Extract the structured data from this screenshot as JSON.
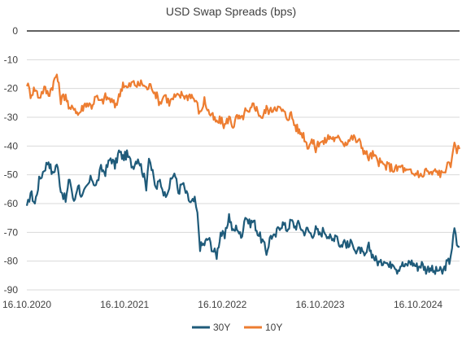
{
  "chart_data": {
    "type": "line",
    "title": "USD Swap Spreads (bps)",
    "xlabel": "",
    "ylabel": "",
    "ylim": [
      -90,
      0
    ],
    "yticks": [
      0,
      -10,
      -20,
      -30,
      -40,
      -50,
      -60,
      -70,
      -80,
      -90
    ],
    "xlim": [
      "2020-10-16",
      "2025-03-20"
    ],
    "xtick_labels": [
      "16.10.2020",
      "16.10.2021",
      "16.10.2022",
      "16.10.2023",
      "16.10.2024"
    ],
    "xtick_dates": [
      "2020-10-16",
      "2021-10-16",
      "2022-10-16",
      "2023-10-16",
      "2024-10-16"
    ],
    "grid": true,
    "legend_position": "bottom",
    "series": [
      {
        "name": "30Y",
        "color": "#1f5b7a",
        "points": [
          [
            "2020-10-16",
            -62
          ],
          [
            "2020-10-30",
            -56
          ],
          [
            "2020-11-15",
            -60
          ],
          [
            "2020-12-01",
            -52
          ],
          [
            "2020-12-20",
            -48
          ],
          [
            "2021-01-05",
            -45
          ],
          [
            "2021-01-20",
            -50
          ],
          [
            "2021-02-05",
            -46
          ],
          [
            "2021-02-20",
            -55
          ],
          [
            "2021-03-10",
            -59
          ],
          [
            "2021-03-25",
            -51
          ],
          [
            "2021-04-10",
            -60
          ],
          [
            "2021-04-25",
            -53
          ],
          [
            "2021-05-10",
            -58
          ],
          [
            "2021-05-25",
            -55
          ],
          [
            "2021-06-15",
            -51
          ],
          [
            "2021-07-01",
            -54
          ],
          [
            "2021-07-20",
            -48
          ],
          [
            "2021-08-05",
            -49
          ],
          [
            "2021-08-25",
            -44
          ],
          [
            "2021-09-10",
            -47
          ],
          [
            "2021-09-25",
            -42
          ],
          [
            "2021-10-10",
            -44
          ],
          [
            "2021-10-25",
            -43
          ],
          [
            "2021-11-15",
            -47
          ],
          [
            "2021-12-05",
            -44
          ],
          [
            "2021-12-20",
            -48
          ],
          [
            "2022-01-05",
            -54
          ],
          [
            "2022-01-15",
            -43
          ],
          [
            "2022-01-25",
            -48
          ],
          [
            "2022-02-10",
            -55
          ],
          [
            "2022-02-25",
            -52
          ],
          [
            "2022-03-15",
            -57
          ],
          [
            "2022-04-01",
            -54
          ],
          [
            "2022-04-20",
            -49
          ],
          [
            "2022-05-05",
            -56
          ],
          [
            "2022-05-20",
            -53
          ],
          [
            "2022-06-05",
            -57
          ],
          [
            "2022-06-20",
            -60
          ],
          [
            "2022-07-05",
            -59
          ],
          [
            "2022-07-15",
            -64
          ],
          [
            "2022-07-25",
            -75
          ],
          [
            "2022-08-10",
            -74
          ],
          [
            "2022-08-25",
            -72
          ],
          [
            "2022-09-10",
            -76
          ],
          [
            "2022-09-25",
            -78
          ],
          [
            "2022-10-10",
            -70
          ],
          [
            "2022-10-25",
            -72
          ],
          [
            "2022-11-10",
            -64
          ],
          [
            "2022-11-25",
            -70
          ],
          [
            "2022-12-10",
            -68
          ],
          [
            "2022-12-25",
            -72
          ],
          [
            "2023-01-10",
            -64
          ],
          [
            "2023-01-25",
            -67
          ],
          [
            "2023-02-10",
            -66
          ],
          [
            "2023-02-25",
            -70
          ],
          [
            "2023-03-15",
            -73
          ],
          [
            "2023-03-30",
            -77
          ],
          [
            "2023-04-15",
            -71
          ],
          [
            "2023-04-30",
            -72
          ],
          [
            "2023-05-15",
            -68
          ],
          [
            "2023-05-30",
            -67
          ],
          [
            "2023-06-15",
            -69
          ],
          [
            "2023-06-30",
            -66
          ],
          [
            "2023-07-15",
            -68
          ],
          [
            "2023-07-30",
            -67
          ],
          [
            "2023-08-15",
            -70
          ],
          [
            "2023-08-30",
            -69
          ],
          [
            "2023-09-15",
            -71
          ],
          [
            "2023-09-30",
            -69
          ],
          [
            "2023-10-15",
            -71
          ],
          [
            "2023-10-30",
            -69
          ],
          [
            "2023-11-15",
            -71
          ],
          [
            "2023-11-30",
            -73
          ],
          [
            "2023-12-15",
            -70
          ],
          [
            "2023-12-30",
            -75
          ],
          [
            "2024-01-15",
            -73
          ],
          [
            "2024-01-30",
            -75
          ],
          [
            "2024-02-15",
            -73
          ],
          [
            "2024-02-28",
            -77
          ],
          [
            "2024-03-15",
            -76
          ],
          [
            "2024-03-30",
            -79
          ],
          [
            "2024-04-15",
            -75
          ],
          [
            "2024-04-30",
            -78
          ],
          [
            "2024-05-15",
            -80
          ],
          [
            "2024-05-30",
            -81
          ],
          [
            "2024-06-15",
            -79
          ],
          [
            "2024-06-30",
            -82
          ],
          [
            "2024-07-15",
            -80
          ],
          [
            "2024-07-30",
            -83
          ],
          [
            "2024-08-15",
            -81
          ],
          [
            "2024-08-30",
            -82
          ],
          [
            "2024-09-15",
            -80
          ],
          [
            "2024-09-30",
            -81
          ],
          [
            "2024-10-15",
            -82
          ],
          [
            "2024-10-30",
            -81
          ],
          [
            "2024-11-15",
            -83
          ],
          [
            "2024-11-30",
            -82
          ],
          [
            "2024-12-15",
            -84
          ],
          [
            "2024-12-30",
            -83
          ],
          [
            "2025-01-15",
            -84
          ],
          [
            "2025-01-30",
            -81
          ],
          [
            "2025-02-10",
            -80
          ],
          [
            "2025-02-20",
            -75
          ],
          [
            "2025-03-01",
            -69
          ],
          [
            "2025-03-10",
            -74
          ],
          [
            "2025-03-20",
            -75
          ]
        ]
      },
      {
        "name": "10Y",
        "color": "#ed7d31",
        "points": [
          [
            "2020-10-16",
            -18
          ],
          [
            "2020-10-30",
            -22
          ],
          [
            "2020-11-15",
            -20
          ],
          [
            "2020-12-01",
            -23
          ],
          [
            "2020-12-20",
            -20
          ],
          [
            "2021-01-05",
            -22
          ],
          [
            "2021-01-20",
            -19
          ],
          [
            "2021-02-05",
            -15
          ],
          [
            "2021-02-20",
            -24
          ],
          [
            "2021-03-10",
            -22
          ],
          [
            "2021-03-25",
            -28
          ],
          [
            "2021-04-10",
            -26
          ],
          [
            "2021-04-25",
            -29
          ],
          [
            "2021-05-10",
            -27
          ],
          [
            "2021-05-25",
            -25
          ],
          [
            "2021-06-15",
            -26
          ],
          [
            "2021-07-01",
            -23
          ],
          [
            "2021-07-20",
            -25
          ],
          [
            "2021-08-05",
            -23
          ],
          [
            "2021-08-25",
            -24
          ],
          [
            "2021-09-10",
            -26
          ],
          [
            "2021-09-25",
            -23
          ],
          [
            "2021-10-10",
            -18
          ],
          [
            "2021-10-25",
            -20
          ],
          [
            "2021-11-15",
            -18
          ],
          [
            "2021-12-05",
            -19
          ],
          [
            "2021-12-20",
            -18
          ],
          [
            "2022-01-05",
            -20
          ],
          [
            "2022-01-25",
            -19
          ],
          [
            "2022-02-10",
            -22
          ],
          [
            "2022-02-25",
            -25
          ],
          [
            "2022-03-15",
            -22
          ],
          [
            "2022-04-01",
            -25
          ],
          [
            "2022-04-20",
            -23
          ],
          [
            "2022-05-05",
            -23
          ],
          [
            "2022-05-20",
            -22
          ],
          [
            "2022-06-05",
            -23
          ],
          [
            "2022-06-20",
            -22
          ],
          [
            "2022-07-05",
            -24
          ],
          [
            "2022-07-15",
            -26
          ],
          [
            "2022-07-25",
            -29
          ],
          [
            "2022-08-10",
            -24
          ],
          [
            "2022-08-25",
            -28
          ],
          [
            "2022-09-10",
            -30
          ],
          [
            "2022-09-25",
            -32
          ],
          [
            "2022-10-10",
            -31
          ],
          [
            "2022-10-25",
            -33
          ],
          [
            "2022-11-10",
            -30
          ],
          [
            "2022-11-25",
            -33
          ],
          [
            "2022-12-10",
            -30
          ],
          [
            "2022-12-25",
            -31
          ],
          [
            "2023-01-10",
            -28
          ],
          [
            "2023-01-25",
            -29
          ],
          [
            "2023-02-10",
            -25
          ],
          [
            "2023-02-25",
            -28
          ],
          [
            "2023-03-15",
            -30
          ],
          [
            "2023-03-30",
            -27
          ],
          [
            "2023-04-15",
            -28
          ],
          [
            "2023-04-30",
            -26
          ],
          [
            "2023-05-15",
            -27
          ],
          [
            "2023-05-30",
            -28
          ],
          [
            "2023-06-15",
            -30
          ],
          [
            "2023-06-30",
            -29
          ],
          [
            "2023-07-15",
            -33
          ],
          [
            "2023-07-30",
            -35
          ],
          [
            "2023-08-15",
            -36
          ],
          [
            "2023-08-30",
            -40
          ],
          [
            "2023-09-15",
            -38
          ],
          [
            "2023-09-30",
            -41
          ],
          [
            "2023-10-15",
            -38
          ],
          [
            "2023-10-30",
            -39
          ],
          [
            "2023-11-15",
            -37
          ],
          [
            "2023-11-30",
            -37
          ],
          [
            "2023-12-15",
            -38
          ],
          [
            "2023-12-30",
            -37
          ],
          [
            "2024-01-15",
            -39
          ],
          [
            "2024-01-30",
            -38
          ],
          [
            "2024-02-15",
            -37
          ],
          [
            "2024-02-28",
            -38
          ],
          [
            "2024-03-15",
            -39
          ],
          [
            "2024-03-30",
            -42
          ],
          [
            "2024-04-15",
            -44
          ],
          [
            "2024-04-30",
            -43
          ],
          [
            "2024-05-15",
            -45
          ],
          [
            "2024-05-30",
            -46
          ],
          [
            "2024-06-15",
            -47
          ],
          [
            "2024-06-30",
            -47
          ],
          [
            "2024-07-15",
            -48
          ],
          [
            "2024-07-30",
            -48
          ],
          [
            "2024-08-15",
            -47
          ],
          [
            "2024-08-30",
            -49
          ],
          [
            "2024-09-15",
            -49
          ],
          [
            "2024-09-30",
            -50
          ],
          [
            "2024-10-15",
            -49
          ],
          [
            "2024-10-30",
            -51
          ],
          [
            "2024-11-15",
            -48
          ],
          [
            "2024-11-30",
            -50
          ],
          [
            "2024-12-15",
            -49
          ],
          [
            "2024-12-30",
            -49
          ],
          [
            "2025-01-15",
            -50
          ],
          [
            "2025-01-30",
            -47
          ],
          [
            "2025-02-10",
            -47
          ],
          [
            "2025-02-20",
            -45
          ],
          [
            "2025-03-01",
            -38
          ],
          [
            "2025-03-10",
            -41
          ],
          [
            "2025-03-20",
            -41
          ]
        ]
      }
    ]
  }
}
